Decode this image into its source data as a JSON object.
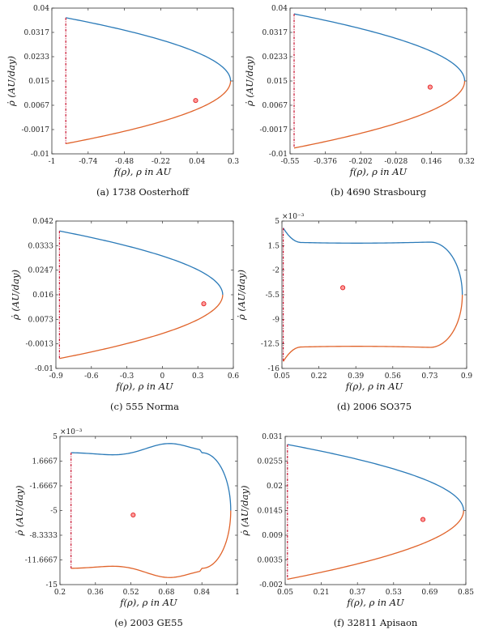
{
  "colors": {
    "upper": "#2a7ab8",
    "lower": "#e0632a",
    "dashed": "#c8102e",
    "point": "#e02020",
    "axis": "#333333"
  },
  "chart_data": [
    {
      "type": "line",
      "caption": "(a) 1738 Oosterhoff",
      "xlabel": "f(ρ),  ρ in AU",
      "ylabel": "ρ̇ (AU/day)",
      "multiplier": "",
      "xlim": [
        -1,
        0.3
      ],
      "ylim": [
        -0.01,
        0.04
      ],
      "xticks": [
        "-1",
        "-0.74",
        "-0.48",
        "-0.22",
        "0.04",
        "0.3"
      ],
      "yticks": [
        "-0.01",
        "-0.0017",
        "0.0067",
        "0.015",
        "0.0233",
        "0.0317",
        "0.04"
      ],
      "shape": {
        "x_left": -0.9,
        "x_right": 0.28,
        "y_top": 0.0367,
        "y_bottom": -0.0065,
        "y_turn": 0.015,
        "y_flat": 0.035,
        "form": "parabolic"
      },
      "series": [
        {
          "name": "",
          "x": [
            -0.9,
            -0.5,
            0,
            0.2,
            0.28
          ],
          "y": [
            0.0367,
            0.0345,
            0.027,
            0.021,
            0.015
          ]
        },
        {
          "name": "",
          "x": [
            -0.9,
            -0.5,
            0,
            0.2,
            0.28
          ],
          "y": [
            -0.0065,
            -0.004,
            0.003,
            0.009,
            0.015
          ]
        }
      ],
      "point": {
        "x": 0.03,
        "y": 0.0083
      }
    },
    {
      "type": "line",
      "caption": "(b) 4690 Strasbourg",
      "xlabel": "f(ρ),  ρ in AU",
      "ylabel": "ρ̇ (AU/day)",
      "multiplier": "",
      "xlim": [
        -0.55,
        0.32
      ],
      "ylim": [
        -0.01,
        0.04
      ],
      "xticks": [
        "-0.55",
        "-0.376",
        "-0.202",
        "-0.028",
        "0.146",
        "0.32"
      ],
      "yticks": [
        "-0.01",
        "-0.0017",
        "0.0067",
        "0.015",
        "0.0233",
        "0.0317",
        "0.04"
      ],
      "shape": {
        "x_left": -0.53,
        "x_right": 0.31,
        "y_top": 0.038,
        "y_bottom": -0.008,
        "y_turn": 0.015,
        "y_flat": 0.036,
        "form": "parabolic"
      },
      "series": [
        {
          "name": "",
          "x": [
            -0.53,
            -0.2,
            0.1,
            0.25,
            0.31
          ],
          "y": [
            0.038,
            0.036,
            0.03,
            0.023,
            0.015
          ]
        },
        {
          "name": "",
          "x": [
            -0.53,
            -0.2,
            0.1,
            0.25,
            0.31
          ],
          "y": [
            -0.008,
            -0.006,
            0.0,
            0.007,
            0.015
          ]
        }
      ],
      "point": {
        "x": 0.14,
        "y": 0.0129
      }
    },
    {
      "type": "line",
      "caption": "(c) 555 Norma",
      "xlabel": "f(ρ),  ρ in AU",
      "ylabel": "ρ̇ (AU/day)",
      "multiplier": "",
      "xlim": [
        -0.9,
        0.6
      ],
      "ylim": [
        -0.01,
        0.042
      ],
      "xticks": [
        "-0.9",
        "-0.6",
        "-0.3",
        "0",
        "0.3",
        "0.6"
      ],
      "yticks": [
        "-0.01",
        "-0.0013",
        "0.0073",
        "0.016",
        "0.0247",
        "0.0333",
        "0.042"
      ],
      "shape": {
        "x_left": -0.87,
        "x_right": 0.51,
        "y_top": 0.0385,
        "y_bottom": -0.0065,
        "y_turn": 0.016,
        "y_flat": 0.037,
        "form": "parabolic"
      },
      "series": [
        {
          "name": "",
          "x": [
            -0.87,
            -0.3,
            0.2,
            0.45,
            0.51
          ],
          "y": [
            0.0385,
            0.036,
            0.029,
            0.022,
            0.016
          ]
        },
        {
          "name": "",
          "x": [
            -0.87,
            -0.3,
            0.2,
            0.45,
            0.51
          ],
          "y": [
            -0.0065,
            -0.004,
            0.003,
            0.01,
            0.016
          ]
        }
      ],
      "point": {
        "x": 0.35,
        "y": 0.0128
      }
    },
    {
      "type": "line",
      "caption": "(d) 2006 SO375",
      "xlabel": "f(ρ),  ρ in AU",
      "ylabel": "ρ̇ (AU/day)",
      "multiplier": "×10⁻³",
      "xlim": [
        0.05,
        0.9
      ],
      "ylim": [
        -16,
        5
      ],
      "xticks": [
        "0.05",
        "0.22",
        "0.39",
        "0.56",
        "0.73",
        "0.9"
      ],
      "yticks": [
        "-16",
        "-12.5",
        "-9",
        "-5.5",
        "-2",
        "1.5",
        "5"
      ],
      "shape": {
        "x_left": 0.056,
        "x_right": 0.88,
        "y_top": 4.0,
        "y_bottom": -15.0,
        "y_turn": -5.5,
        "y_flat": 2.0,
        "form": "wavy"
      },
      "series": [
        {
          "name": "",
          "x": [
            0.056,
            0.2,
            0.45,
            0.7,
            0.88
          ],
          "y": [
            4.0,
            2.0,
            2.2,
            2.0,
            -5.5
          ]
        },
        {
          "name": "",
          "x": [
            0.056,
            0.2,
            0.45,
            0.7,
            0.88
          ],
          "y": [
            -15.0,
            -13.0,
            -13.2,
            -13.0,
            -5.5
          ]
        }
      ],
      "point": {
        "x": 0.33,
        "y": -4.5
      }
    },
    {
      "type": "line",
      "caption": "(e) 2003 GE55",
      "xlabel": "f(ρ),  ρ in AU",
      "ylabel": "ρ̇ (AU/day)",
      "multiplier": "×10⁻³",
      "xlim": [
        0.2,
        1
      ],
      "ylim": [
        -15,
        5
      ],
      "xticks": [
        "0.2",
        "0.36",
        "0.52",
        "0.68",
        "0.84",
        "1"
      ],
      "yticks": [
        "-15",
        "-11.6667",
        "-8.3333",
        "-5",
        "-1.6667",
        "1.6667",
        "5"
      ],
      "shape": {
        "x_left": 0.25,
        "x_right": 0.97,
        "y_top": 2.8,
        "y_bottom": -12.8,
        "y_turn": -5.0,
        "y_flat": 2.8,
        "form": "hump"
      },
      "series": [
        {
          "name": "",
          "x": [
            0.25,
            0.45,
            0.7,
            0.9,
            0.97
          ],
          "y": [
            2.8,
            2.6,
            4.0,
            2.0,
            -5.0
          ]
        },
        {
          "name": "",
          "x": [
            0.25,
            0.45,
            0.7,
            0.9,
            0.97
          ],
          "y": [
            -12.8,
            -12.6,
            -14.0,
            -12.0,
            -5.0
          ]
        }
      ],
      "point": {
        "x": 0.53,
        "y": -5.6
      }
    },
    {
      "type": "line",
      "caption": "(f) 32811 Apisaon",
      "xlabel": "f(ρ),  ρ in AU",
      "ylabel": "ρ̇ (AU/day)",
      "multiplier": "",
      "xlim": [
        0.05,
        0.85
      ],
      "ylim": [
        -0.002,
        0.031
      ],
      "xticks": [
        "0.05",
        "0.21",
        "0.37",
        "0.53",
        "0.69",
        "0.85"
      ],
      "yticks": [
        "-0.002",
        "0.0035",
        "0.009",
        "0.0145",
        "0.02",
        "0.0255",
        "0.031"
      ],
      "shape": {
        "x_left": 0.06,
        "x_right": 0.84,
        "y_top": 0.0292,
        "y_bottom": -0.0008,
        "y_turn": 0.0145,
        "y_flat": 0.0283,
        "form": "parabolic"
      },
      "series": [
        {
          "name": "",
          "x": [
            0.06,
            0.3,
            0.55,
            0.75,
            0.84
          ],
          "y": [
            0.0292,
            0.027,
            0.023,
            0.019,
            0.0145
          ]
        },
        {
          "name": "",
          "x": [
            0.06,
            0.3,
            0.55,
            0.75,
            0.84
          ],
          "y": [
            -0.0008,
            0.002,
            0.0065,
            0.01,
            0.0145
          ]
        }
      ],
      "point": {
        "x": 0.66,
        "y": 0.0125
      }
    }
  ]
}
